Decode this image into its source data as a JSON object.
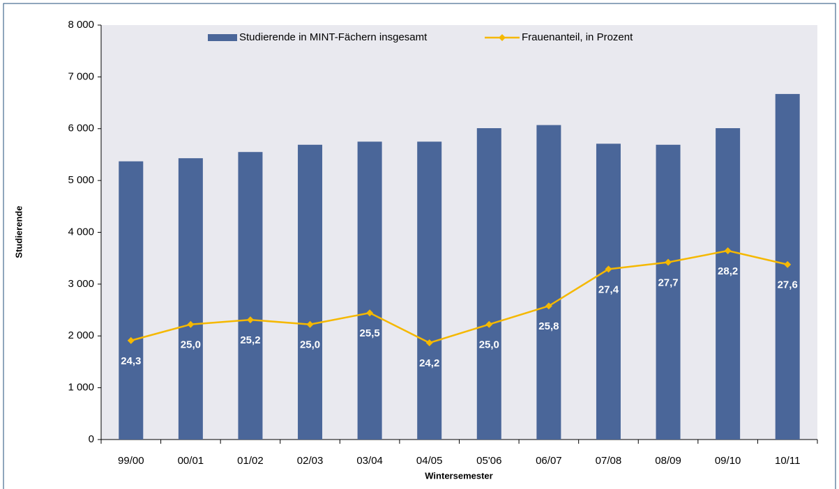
{
  "chart_data": {
    "type": "bar-line",
    "x_label": "Wintersemester",
    "y_label": "Studierende",
    "categories": [
      "99/00",
      "00/01",
      "01/02",
      "02/03",
      "03/04",
      "04/05",
      "05'06",
      "06/07",
      "07/08",
      "08/09",
      "09/10",
      "10/11"
    ],
    "series": [
      {
        "name": "Studierende in MINT-Fächern insgesamt",
        "type": "bar",
        "color": "#4a6699",
        "values": [
          5370,
          5430,
          5550,
          5690,
          5750,
          5750,
          6010,
          6070,
          5710,
          5690,
          6010,
          6670
        ]
      },
      {
        "name": "Frauenanteil, in Prozent",
        "type": "line",
        "axis": "y2",
        "color": "#f5b800",
        "values": [
          24.3,
          25.0,
          25.2,
          25.0,
          25.5,
          24.2,
          25.0,
          25.8,
          27.4,
          27.7,
          28.2,
          27.6
        ],
        "value_labels": [
          "24,3",
          "25,0",
          "25,2",
          "25,0",
          "25,5",
          "24,2",
          "25,0",
          "25,8",
          "27,4",
          "27,7",
          "28,2",
          "27,6"
        ]
      }
    ],
    "ylim": [
      0,
      8000
    ],
    "yticks": [
      0,
      {
        "value": 1000,
        "label": "1 000"
      },
      {
        "value": 2000,
        "label": "2 000"
      },
      {
        "value": 3000,
        "label": "3 000"
      },
      {
        "value": 4000,
        "label": "4 000"
      },
      {
        "value": 5000,
        "label": "5 000"
      },
      {
        "value": 6000,
        "label": "6 000"
      },
      {
        "value": 7000,
        "label": "7 000"
      },
      {
        "value": 8000,
        "label": "8 000"
      }
    ],
    "y2lim": [
      20,
      38
    ],
    "legend": "top"
  }
}
